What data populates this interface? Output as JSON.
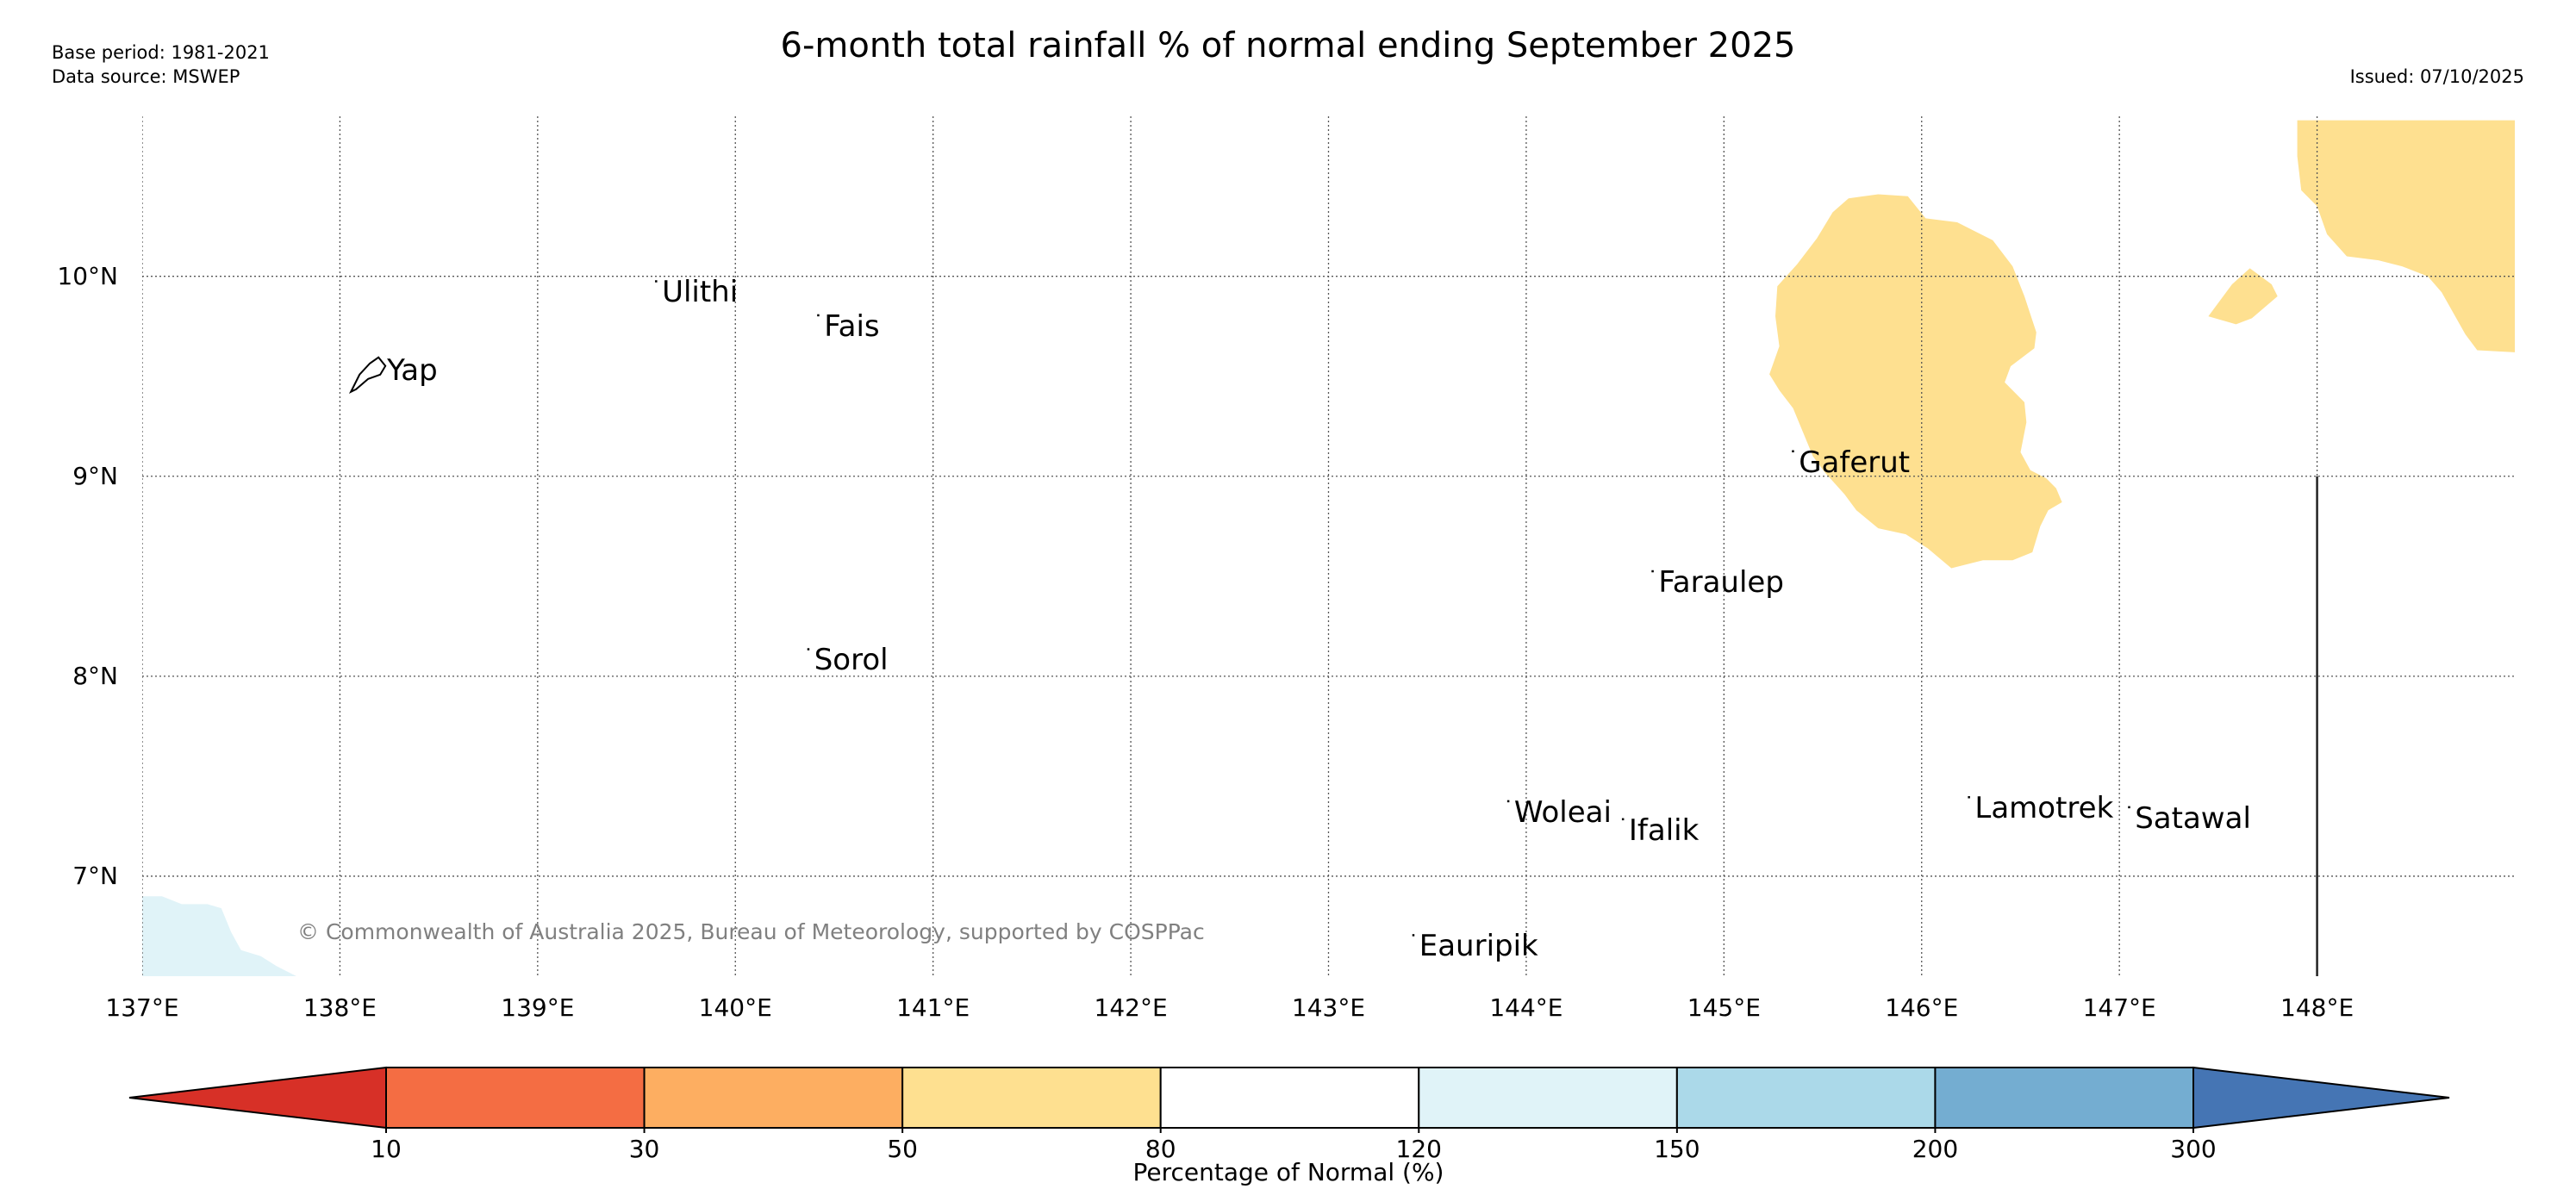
{
  "title": "6-month total rainfall % of normal ending September 2025",
  "meta": {
    "base_period": "Base period: 1981-2021",
    "data_source": "Data source: MSWEP",
    "issued": "Issued: 07/10/2025"
  },
  "copyright": "© Commonwealth of Australia 2025, Bureau of Meteorology, supported by COSPPac",
  "map": {
    "lon_range": [
      137.0,
      149.0
    ],
    "lat_range": [
      6.5,
      10.8
    ],
    "lon_ticks": [
      137,
      138,
      139,
      140,
      141,
      142,
      143,
      144,
      145,
      146,
      147,
      148
    ],
    "lon_labels": [
      "137°E",
      "138°E",
      "139°E",
      "140°E",
      "141°E",
      "142°E",
      "143°E",
      "144°E",
      "145°E",
      "146°E",
      "147°E",
      "148°E"
    ],
    "lat_ticks": [
      10,
      9,
      8,
      7
    ],
    "lat_labels": [
      "10°N",
      "9°N",
      "8°N",
      "7°N"
    ],
    "places": [
      {
        "name": "Yap",
        "lon": 138.23,
        "lat": 9.53
      },
      {
        "name": "Ulithi",
        "lon": 139.62,
        "lat": 9.92
      },
      {
        "name": "Fais",
        "lon": 140.44,
        "lat": 9.75
      },
      {
        "name": "Gaferut",
        "lon": 145.37,
        "lat": 9.07
      },
      {
        "name": "Faraulep",
        "lon": 144.66,
        "lat": 8.47
      },
      {
        "name": "Sorol",
        "lon": 140.39,
        "lat": 8.08
      },
      {
        "name": "Woleai",
        "lon": 143.93,
        "lat": 7.32
      },
      {
        "name": "Ifalik",
        "lon": 144.51,
        "lat": 7.23
      },
      {
        "name": "Lamotrek",
        "lon": 146.26,
        "lat": 7.34
      },
      {
        "name": "Satawal",
        "lon": 147.07,
        "lat": 7.29
      },
      {
        "name": "Eauripik",
        "lon": 143.45,
        "lat": 6.65
      }
    ],
    "rainfall_regions": [
      {
        "name": "rainfall-area-central",
        "color": "#fee090",
        "class": "50-80",
        "coords": [
          [
            145.78,
            10.41
          ],
          [
            145.93,
            10.4
          ],
          [
            146.02,
            10.29
          ],
          [
            146.18,
            10.27
          ],
          [
            146.36,
            10.18
          ],
          [
            146.46,
            10.05
          ],
          [
            146.52,
            9.9
          ],
          [
            146.58,
            9.72
          ],
          [
            146.57,
            9.64
          ],
          [
            146.45,
            9.55
          ],
          [
            146.42,
            9.47
          ],
          [
            146.52,
            9.37
          ],
          [
            146.53,
            9.27
          ],
          [
            146.5,
            9.12
          ],
          [
            146.55,
            9.03
          ],
          [
            146.63,
            8.99
          ],
          [
            146.68,
            8.94
          ],
          [
            146.71,
            8.87
          ],
          [
            146.64,
            8.83
          ],
          [
            146.6,
            8.75
          ],
          [
            146.56,
            8.62
          ],
          [
            146.46,
            8.58
          ],
          [
            146.31,
            8.58
          ],
          [
            146.15,
            8.54
          ],
          [
            146.03,
            8.64
          ],
          [
            145.92,
            8.71
          ],
          [
            145.78,
            8.74
          ],
          [
            145.67,
            8.83
          ],
          [
            145.61,
            8.91
          ],
          [
            145.51,
            9.02
          ],
          [
            145.45,
            9.1
          ],
          [
            145.4,
            9.22
          ],
          [
            145.35,
            9.34
          ],
          [
            145.28,
            9.43
          ],
          [
            145.23,
            9.51
          ],
          [
            145.28,
            9.65
          ],
          [
            145.26,
            9.8
          ],
          [
            145.27,
            9.95
          ],
          [
            145.37,
            10.06
          ],
          [
            145.47,
            10.19
          ],
          [
            145.55,
            10.32
          ],
          [
            145.63,
            10.39
          ],
          [
            145.78,
            10.41
          ]
        ]
      },
      {
        "name": "rainfall-area-east",
        "color": "#fee090",
        "class": "50-80",
        "coords": [
          [
            147.9,
            10.78
          ],
          [
            149.0,
            10.78
          ],
          [
            149.0,
            9.62
          ],
          [
            148.81,
            9.63
          ],
          [
            148.75,
            9.71
          ],
          [
            148.67,
            9.85
          ],
          [
            148.63,
            9.92
          ],
          [
            148.56,
            10.0
          ],
          [
            148.43,
            10.05
          ],
          [
            148.31,
            10.08
          ],
          [
            148.15,
            10.1
          ],
          [
            148.05,
            10.21
          ],
          [
            148.0,
            10.35
          ],
          [
            147.92,
            10.43
          ],
          [
            147.9,
            10.6
          ],
          [
            147.9,
            10.78
          ]
        ]
      },
      {
        "name": "rainfall-islet-east",
        "color": "#fee090",
        "class": "50-80",
        "coords": [
          [
            147.45,
            9.8
          ],
          [
            147.57,
            9.96
          ],
          [
            147.66,
            10.04
          ],
          [
            147.77,
            9.96
          ],
          [
            147.8,
            9.9
          ],
          [
            147.67,
            9.79
          ],
          [
            147.59,
            9.76
          ],
          [
            147.45,
            9.8
          ]
        ]
      },
      {
        "name": "rainfall-area-southwest",
        "color": "#e0f3f8",
        "class": "120-150",
        "coords": [
          [
            137.0,
            6.5
          ],
          [
            137.0,
            6.9
          ],
          [
            137.1,
            6.9
          ],
          [
            137.2,
            6.86
          ],
          [
            137.33,
            6.86
          ],
          [
            137.4,
            6.84
          ],
          [
            137.45,
            6.72
          ],
          [
            137.5,
            6.63
          ],
          [
            137.6,
            6.6
          ],
          [
            137.68,
            6.55
          ],
          [
            137.78,
            6.5
          ],
          [
            137.0,
            6.5
          ]
        ]
      }
    ],
    "boundary_line": {
      "lon": 148.0,
      "lat_from": 9.0,
      "lat_to": 6.5
    }
  },
  "colorbar": {
    "label": "Percentage of Normal (%)",
    "tick_labels": [
      "10",
      "30",
      "50",
      "80",
      "120",
      "150",
      "200",
      "300"
    ],
    "under_color": "#d73027",
    "over_color": "#4575b4",
    "bins": [
      {
        "range": "10-30",
        "color": "#f46d43"
      },
      {
        "range": "30-50",
        "color": "#fdae61"
      },
      {
        "range": "50-80",
        "color": "#fee090"
      },
      {
        "range": "80-120",
        "color": "#ffffff"
      },
      {
        "range": "120-150",
        "color": "#e0f3f8"
      },
      {
        "range": "150-200",
        "color": "#abd9e9"
      },
      {
        "range": "200-300",
        "color": "#74add1"
      }
    ]
  }
}
